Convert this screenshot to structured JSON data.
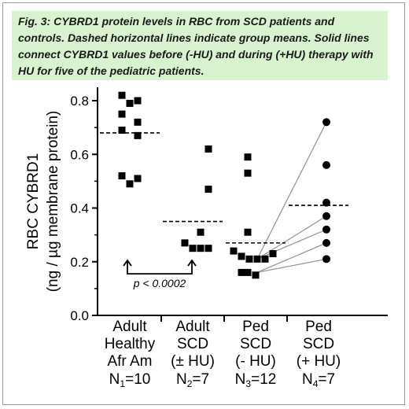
{
  "caption": "Fig. 3: CYBRD1 protein levels in RBC from SCD patients and controls. Dashed horizontal lines indicate group means. Solid lines connect CYBRD1 values before (-HU) and during (+HU) therapy with HU for five of the pediatric patients.",
  "chart_data": {
    "type": "scatter",
    "ylabel_line1": "RBC CYBRD1",
    "ylabel_line2": "(ng / µg membrane protein)",
    "ylim": [
      0.0,
      0.85
    ],
    "yticks": [
      "0.0",
      "0.2",
      "0.4",
      "0.6",
      "0.8"
    ],
    "ytick_values": [
      0.0,
      0.2,
      0.4,
      0.6,
      0.8
    ],
    "grid": false,
    "groups": [
      {
        "label_lines": [
          "Adult",
          "Healthy",
          "Afr Am"
        ],
        "n_label": "N",
        "n_sub": "1",
        "n_value": "=10",
        "marker": "square",
        "mean": 0.68,
        "values": [
          0.82,
          0.79,
          0.8,
          0.75,
          0.72,
          0.69,
          0.67,
          0.52,
          0.51,
          0.49
        ]
      },
      {
        "label_lines": [
          "Adult",
          "SCD",
          "(± HU)"
        ],
        "n_label": "N",
        "n_sub": "2",
        "n_value": "=7",
        "marker": "square",
        "mean": 0.35,
        "values": [
          0.62,
          0.47,
          0.31,
          0.27,
          0.25,
          0.25,
          0.25
        ]
      },
      {
        "label_lines": [
          "Ped",
          "SCD",
          "(- HU)"
        ],
        "n_label": "N",
        "n_sub": "3",
        "n_value": "=12",
        "marker": "square",
        "mean": 0.27,
        "values": [
          0.59,
          0.53,
          0.31,
          0.24,
          0.22,
          0.21,
          0.21,
          0.21,
          0.23,
          0.16,
          0.15,
          0.16
        ]
      },
      {
        "label_lines": [
          "Ped",
          "SCD",
          "(+ HU)"
        ],
        "n_label": "N",
        "n_sub": "4",
        "n_value": "=7",
        "marker": "circle",
        "mean": 0.41,
        "values": [
          0.72,
          0.56,
          0.42,
          0.37,
          0.32,
          0.27,
          0.21
        ]
      }
    ],
    "paired_lines": [
      {
        "before": 0.21,
        "after": 0.72
      },
      {
        "before": 0.21,
        "after": 0.37
      },
      {
        "before": 0.21,
        "after": 0.32
      },
      {
        "before": 0.16,
        "after": 0.27
      },
      {
        "before": 0.16,
        "after": 0.21
      }
    ],
    "annotation": {
      "text": "p < 0.0002",
      "from_group": 0,
      "to_group": 1
    }
  }
}
